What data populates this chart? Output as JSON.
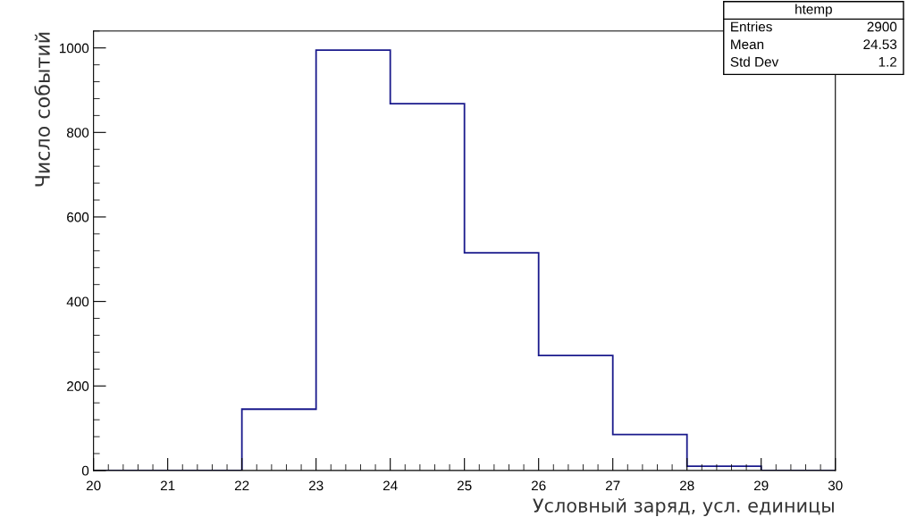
{
  "chart_data": {
    "type": "histogram",
    "xlabel": "Условный заряд, усл. единицы",
    "ylabel": "Число событий",
    "bins": [
      20,
      21,
      22,
      23,
      24,
      25,
      26,
      27,
      28,
      29,
      30
    ],
    "values": [
      0,
      0,
      145,
      995,
      868,
      515,
      272,
      85,
      10,
      0
    ],
    "color": "#1a1a8c",
    "xlim": [
      20,
      30
    ],
    "xticks": [
      20,
      21,
      22,
      23,
      24,
      25,
      26,
      27,
      28,
      29,
      30
    ],
    "ylim": [
      0,
      1040
    ],
    "yticks": [
      0,
      200,
      400,
      600,
      800,
      1000
    ],
    "grid": false,
    "annotations": [
      "htemp",
      "Entries",
      "2900",
      "Mean",
      "24.53",
      "Std Dev",
      "1.2"
    ]
  }
}
